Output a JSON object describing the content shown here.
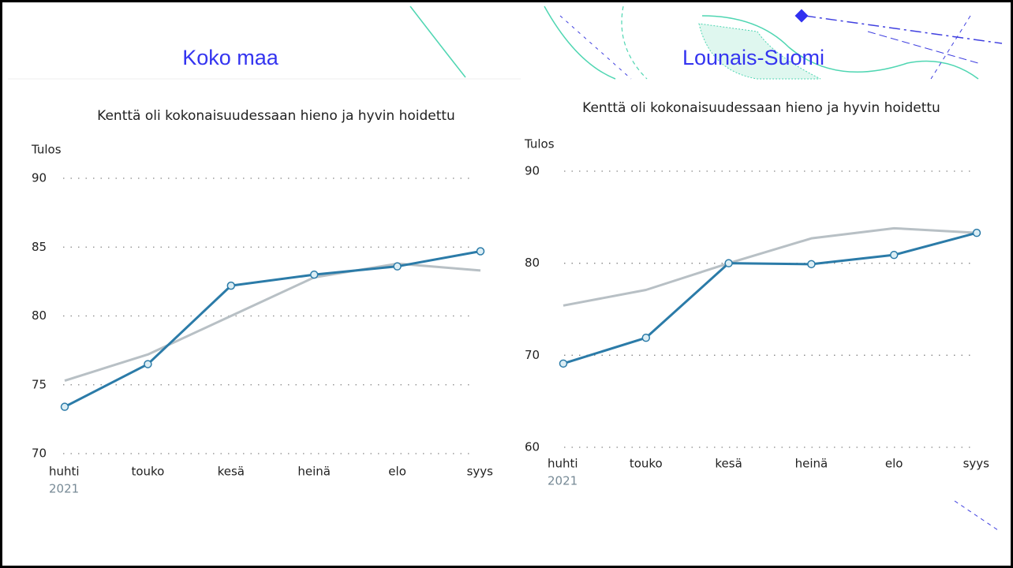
{
  "chart_data": [
    {
      "type": "line",
      "panel_title": "Koko maa",
      "title": "Kenttä oli kokonaisuudessaan hieno ja hyvin hoidettu",
      "y_label": "Tulos",
      "x_sublabel": "2021",
      "categories": [
        "huhti",
        "touko",
        "kesä",
        "heinä",
        "elo",
        "syys"
      ],
      "series": [
        {
          "color": "#b8c0c5",
          "values": [
            75.3,
            77.2,
            80.0,
            82.8,
            83.8,
            83.3
          ],
          "markers": false
        },
        {
          "color": "#2b7ba8",
          "values": [
            73.4,
            76.5,
            82.2,
            83.0,
            83.6,
            84.7
          ],
          "markers": true
        }
      ],
      "ylim": [
        70,
        90
      ],
      "yticks": [
        70,
        75,
        80,
        85,
        90
      ],
      "grid": true
    },
    {
      "type": "line",
      "panel_title": "Lounais-Suomi",
      "title": "Kenttä oli kokonaisuudessaan hieno ja hyvin hoidettu",
      "y_label": "Tulos",
      "x_sublabel": "2021",
      "categories": [
        "huhti",
        "touko",
        "kesä",
        "heinä",
        "elo",
        "syys"
      ],
      "series": [
        {
          "color": "#b8c0c5",
          "values": [
            75.4,
            77.1,
            80.0,
            82.7,
            83.8,
            83.3
          ],
          "markers": false
        },
        {
          "color": "#2b7ba8",
          "values": [
            69.1,
            71.9,
            80.0,
            79.9,
            80.9,
            83.3
          ],
          "markers": true
        }
      ],
      "ylim": [
        60,
        90
      ],
      "yticks": [
        60,
        70,
        80,
        90
      ],
      "grid": true
    }
  ]
}
